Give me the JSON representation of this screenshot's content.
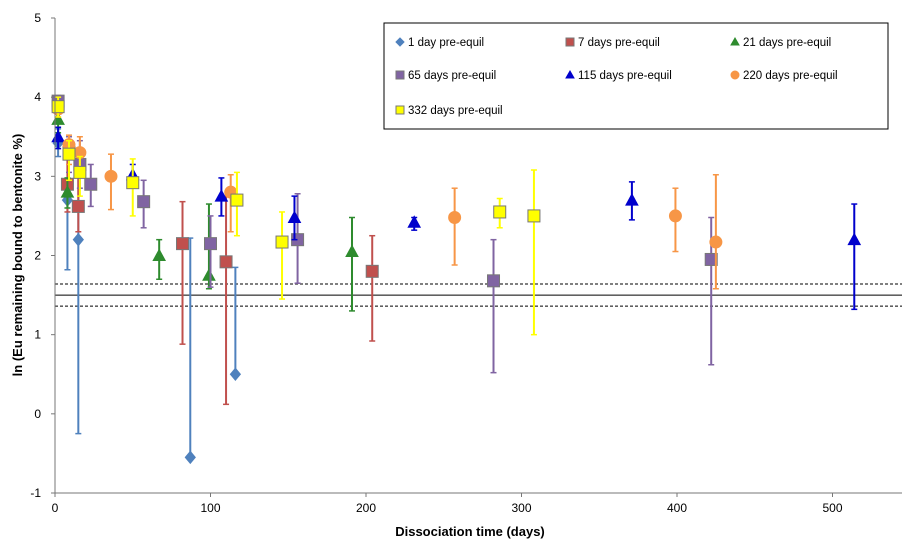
{
  "chart_data": {
    "type": "scatter",
    "title": "",
    "xlabel": "Dissociation time (days)",
    "ylabel": "ln (Eu remaining bound to bentonite %)",
    "xlim": [
      0,
      540
    ],
    "ylim": [
      -1,
      5
    ],
    "xticks": [
      0,
      100,
      200,
      300,
      400,
      500
    ],
    "yticks": [
      -1,
      0,
      1,
      2,
      3,
      4,
      5
    ],
    "grid": false,
    "legend_position": "top-right",
    "reference_lines": [
      {
        "y": 1.5,
        "style": "solid"
      },
      {
        "y": 1.64,
        "style": "dashed"
      },
      {
        "y": 1.36,
        "style": "dashed"
      }
    ],
    "series": [
      {
        "name": "1 day  pre-equil",
        "marker": "diamond",
        "color": "#4F81BD",
        "points": [
          {
            "x": 2,
            "y": 3.42,
            "lo": 3.25,
            "hi": 3.6
          },
          {
            "x": 8,
            "y": 2.7,
            "lo": 1.82,
            "hi": 3.3
          },
          {
            "x": 15,
            "y": 2.2,
            "lo": -0.25,
            "hi": 3.3
          },
          {
            "x": 87,
            "y": -0.55,
            "lo": -0.55,
            "hi": 2.22
          },
          {
            "x": 116,
            "y": 0.5,
            "lo": 0.5,
            "hi": 1.85
          }
        ]
      },
      {
        "name": "7 days  pre-equil",
        "marker": "square",
        "color": "#C0504D",
        "points": [
          {
            "x": 8,
            "y": 2.9,
            "lo": 2.55,
            "hi": 3.3
          },
          {
            "x": 15,
            "y": 2.62,
            "lo": 2.3,
            "hi": 3.0
          },
          {
            "x": 82,
            "y": 2.15,
            "lo": 0.88,
            "hi": 2.68
          },
          {
            "x": 110,
            "y": 1.92,
            "lo": 0.12,
            "hi": 2.75
          },
          {
            "x": 204,
            "y": 1.8,
            "lo": 0.92,
            "hi": 2.25
          }
        ]
      },
      {
        "name": "21 days  pre-equil",
        "marker": "triangle",
        "color": "#2E8B2E",
        "points": [
          {
            "x": 2,
            "y": 3.72,
            "lo": 3.55,
            "hi": 3.9
          },
          {
            "x": 8,
            "y": 2.8,
            "lo": 2.6,
            "hi": 2.98
          },
          {
            "x": 67,
            "y": 2.0,
            "lo": 1.7,
            "hi": 2.2
          },
          {
            "x": 99,
            "y": 1.75,
            "lo": 1.58,
            "hi": 2.65
          },
          {
            "x": 191,
            "y": 2.05,
            "lo": 1.3,
            "hi": 2.48
          }
        ]
      },
      {
        "name": "65 days  pre-equil",
        "marker": "square",
        "color": "#8064A2",
        "points": [
          {
            "x": 2,
            "y": 3.95,
            "lo": 3.8,
            "hi": 4.02
          },
          {
            "x": 9,
            "y": 3.3,
            "lo": 3.05,
            "hi": 3.5
          },
          {
            "x": 16,
            "y": 3.15,
            "lo": 2.85,
            "hi": 3.45
          },
          {
            "x": 23,
            "y": 2.9,
            "lo": 2.62,
            "hi": 3.15
          },
          {
            "x": 57,
            "y": 2.68,
            "lo": 2.35,
            "hi": 2.95
          },
          {
            "x": 100,
            "y": 2.15,
            "lo": 1.6,
            "hi": 2.5
          },
          {
            "x": 156,
            "y": 2.2,
            "lo": 1.65,
            "hi": 2.78
          },
          {
            "x": 282,
            "y": 1.68,
            "lo": 0.52,
            "hi": 2.2
          },
          {
            "x": 422,
            "y": 1.95,
            "lo": 0.62,
            "hi": 2.48
          }
        ]
      },
      {
        "name": "115 days  pre-equil",
        "marker": "triangle",
        "color": "#0000CC",
        "points": [
          {
            "x": 2,
            "y": 3.5,
            "lo": 3.35,
            "hi": 3.62
          },
          {
            "x": 50,
            "y": 3.02,
            "lo": 2.88,
            "hi": 3.15
          },
          {
            "x": 107,
            "y": 2.75,
            "lo": 2.5,
            "hi": 2.98
          },
          {
            "x": 154,
            "y": 2.48,
            "lo": 2.2,
            "hi": 2.75
          },
          {
            "x": 231,
            "y": 2.42,
            "lo": 2.32,
            "hi": 2.48
          },
          {
            "x": 371,
            "y": 2.7,
            "lo": 2.45,
            "hi": 2.93
          },
          {
            "x": 514,
            "y": 2.2,
            "lo": 1.32,
            "hi": 2.65
          }
        ]
      },
      {
        "name": "220 days  pre-equil",
        "marker": "circle",
        "color": "#F79646",
        "points": [
          {
            "x": 2,
            "y": 3.85,
            "lo": 3.75,
            "hi": 3.95
          },
          {
            "x": 9,
            "y": 3.4,
            "lo": 3.15,
            "hi": 3.52
          },
          {
            "x": 16,
            "y": 3.3,
            "lo": 3.05,
            "hi": 3.5
          },
          {
            "x": 36,
            "y": 3.0,
            "lo": 2.58,
            "hi": 3.28
          },
          {
            "x": 113,
            "y": 2.8,
            "lo": 2.3,
            "hi": 3.02
          },
          {
            "x": 257,
            "y": 2.48,
            "lo": 1.88,
            "hi": 2.85
          },
          {
            "x": 399,
            "y": 2.5,
            "lo": 2.05,
            "hi": 2.85
          },
          {
            "x": 425,
            "y": 2.17,
            "lo": 1.58,
            "hi": 3.02
          }
        ]
      },
      {
        "name": "332 days  pre-equil",
        "marker": "square",
        "color": "#FFFF00",
        "points": [
          {
            "x": 2,
            "y": 3.88,
            "lo": 3.75,
            "hi": 4.0
          },
          {
            "x": 9,
            "y": 3.28,
            "lo": 2.95,
            "hi": 3.45
          },
          {
            "x": 16,
            "y": 3.05,
            "lo": 2.75,
            "hi": 3.25
          },
          {
            "x": 50,
            "y": 2.92,
            "lo": 2.5,
            "hi": 3.22
          },
          {
            "x": 117,
            "y": 2.7,
            "lo": 2.25,
            "hi": 3.05
          },
          {
            "x": 146,
            "y": 2.17,
            "lo": 1.45,
            "hi": 2.55
          },
          {
            "x": 286,
            "y": 2.55,
            "lo": 2.35,
            "hi": 2.72
          },
          {
            "x": 308,
            "y": 2.5,
            "lo": 1.0,
            "hi": 3.08
          }
        ]
      }
    ]
  }
}
